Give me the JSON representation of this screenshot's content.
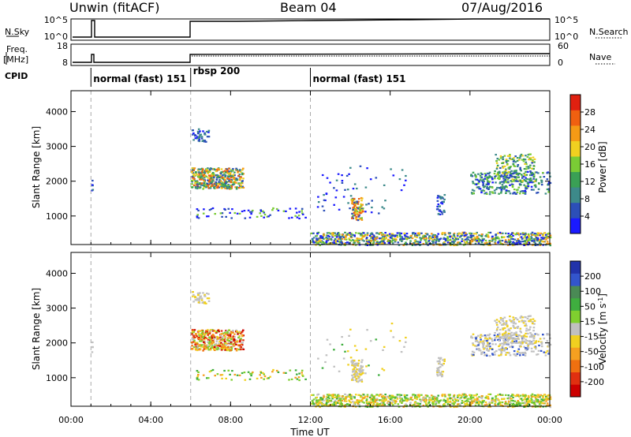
{
  "header": {
    "title_left": "Unwin (fitACF)",
    "title_center": "Beam 04",
    "title_right": "07/Aug/2016"
  },
  "params": {
    "nsky_label": "N.Sky",
    "freq_label": "Freq.",
    "freq_unit": "[MHz]",
    "cpid_label": "CPID",
    "nsearch_label": "N.Search",
    "nave_label": "Nave",
    "nsky_ticks": [
      "10^5",
      "10^0"
    ],
    "nsearch_ticks": [
      "10^5",
      "10^0"
    ],
    "freq_ticks": [
      "18",
      "8"
    ],
    "nave_ticks": [
      "60",
      "0"
    ]
  },
  "programs": [
    {
      "start_hour": 1.0,
      "name": "normal (fast) 151"
    },
    {
      "start_hour": 6.0,
      "name": "rbsp 200"
    },
    {
      "start_hour": 12.0,
      "name": "normal (fast) 151"
    }
  ],
  "axes": {
    "x_label": "Time UT",
    "x_ticks": [
      "00:00",
      "04:00",
      "08:00",
      "12:00",
      "16:00",
      "20:00",
      "00:00"
    ],
    "y_label": "Slant Range [km]",
    "y_ticks": [
      "1000",
      "2000",
      "3000",
      "4000"
    ],
    "x_range_hours": [
      0,
      24
    ],
    "y_range_km": [
      180,
      4600
    ]
  },
  "chart_data": [
    {
      "type": "heatmap",
      "panel": "power",
      "colorbar_label": "Power [dB]",
      "colorbar_ticks": [
        "4",
        "8",
        "12",
        "16",
        "20",
        "24",
        "28"
      ],
      "colorbar_range": [
        0,
        32
      ],
      "colors": [
        "#1a1aff",
        "#2c4fb8",
        "#3d8a8a",
        "#3aa055",
        "#7acc35",
        "#f0d020",
        "#f59a15",
        "#f06010",
        "#e02010"
      ],
      "regions": [
        {
          "t0": 1.0,
          "t1": 1.05,
          "r0": 1700,
          "r1": 2100,
          "n": 6,
          "c": [
            0,
            1,
            2
          ]
        },
        {
          "t0": 6.0,
          "t1": 6.9,
          "r0": 3150,
          "r1": 3520,
          "n": 45,
          "c": [
            0,
            1,
            2
          ]
        },
        {
          "t0": 6.0,
          "t1": 8.6,
          "r0": 1800,
          "r1": 2400,
          "n": 420,
          "c": [
            1,
            2,
            3,
            4,
            5,
            6,
            7
          ]
        },
        {
          "t0": 6.2,
          "t1": 11.8,
          "r0": 950,
          "r1": 1250,
          "n": 70,
          "c": [
            0,
            1,
            4
          ]
        },
        {
          "t0": 12.0,
          "t1": 24.0,
          "r0": 180,
          "r1": 550,
          "n": 900,
          "c": [
            0,
            1,
            2,
            3,
            4,
            5,
            6
          ]
        },
        {
          "t0": 14.0,
          "t1": 14.6,
          "r0": 900,
          "r1": 1550,
          "n": 90,
          "c": [
            1,
            4,
            5,
            6,
            7
          ]
        },
        {
          "t0": 12.2,
          "t1": 16.8,
          "r0": 1100,
          "r1": 2600,
          "n": 60,
          "c": [
            0,
            1,
            2
          ]
        },
        {
          "t0": 18.3,
          "t1": 18.7,
          "r0": 1050,
          "r1": 1650,
          "n": 35,
          "c": [
            0,
            1,
            2
          ]
        },
        {
          "t0": 20.0,
          "t1": 24.0,
          "r0": 1650,
          "r1": 2300,
          "n": 280,
          "c": [
            0,
            1,
            2,
            3,
            4
          ]
        },
        {
          "t0": 21.2,
          "t1": 23.2,
          "r0": 2000,
          "r1": 2800,
          "n": 170,
          "c": [
            1,
            2,
            3,
            4,
            5
          ]
        }
      ]
    },
    {
      "type": "heatmap",
      "panel": "velocity",
      "colorbar_label": "Velocity [m s^-1]",
      "colorbar_ticks": [
        "200",
        "100",
        "50",
        "15",
        "-15",
        "-50",
        "-100",
        "-200"
      ],
      "colorbar_range": [
        -250,
        250
      ],
      "colors": [
        "#2233aa",
        "#3355cc",
        "#4a8a55",
        "#3fae3f",
        "#7fcf2f",
        "#c0c0c0",
        "#f0d020",
        "#f5a020",
        "#f07010",
        "#e03010",
        "#cc0000"
      ],
      "regions": [
        {
          "t0": 1.0,
          "t1": 1.05,
          "r0": 1700,
          "r1": 2100,
          "n": 4,
          "c": [
            5
          ]
        },
        {
          "t0": 6.0,
          "t1": 6.9,
          "r0": 3150,
          "r1": 3520,
          "n": 45,
          "c": [
            5,
            6,
            5
          ]
        },
        {
          "t0": 6.0,
          "t1": 8.6,
          "r0": 1800,
          "r1": 2400,
          "n": 420,
          "c": [
            5,
            6,
            7,
            8,
            9,
            10,
            4
          ]
        },
        {
          "t0": 6.2,
          "t1": 11.8,
          "r0": 950,
          "r1": 1250,
          "n": 70,
          "c": [
            3,
            4,
            6,
            7
          ]
        },
        {
          "t0": 12.0,
          "t1": 24.0,
          "r0": 180,
          "r1": 550,
          "n": 900,
          "c": [
            3,
            4,
            4,
            5,
            6,
            6,
            7
          ]
        },
        {
          "t0": 14.0,
          "t1": 14.6,
          "r0": 900,
          "r1": 1550,
          "n": 90,
          "c": [
            5,
            5,
            6
          ]
        },
        {
          "t0": 12.2,
          "t1": 16.8,
          "r0": 1100,
          "r1": 2600,
          "n": 40,
          "c": [
            5,
            3,
            6
          ]
        },
        {
          "t0": 18.3,
          "t1": 18.7,
          "r0": 1050,
          "r1": 1650,
          "n": 35,
          "c": [
            5,
            5,
            6
          ]
        },
        {
          "t0": 20.0,
          "t1": 24.0,
          "r0": 1650,
          "r1": 2300,
          "n": 280,
          "c": [
            5,
            5,
            5,
            6,
            1
          ]
        },
        {
          "t0": 21.2,
          "t1": 23.2,
          "r0": 2000,
          "r1": 2800,
          "n": 170,
          "c": [
            5,
            5,
            5,
            6
          ]
        }
      ]
    }
  ]
}
